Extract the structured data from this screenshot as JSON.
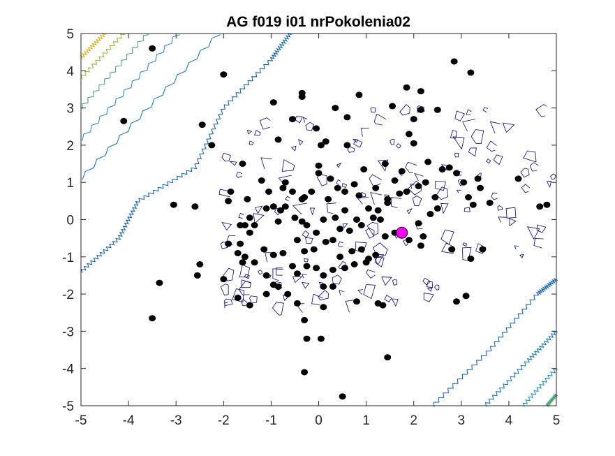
{
  "chart_data": {
    "type": "scatter",
    "title": "AG f019 i01 nrPokolenia02",
    "xlabel": "",
    "ylabel": "",
    "xlim": [
      -5,
      5
    ],
    "ylim": [
      -5,
      5
    ],
    "xticks": [
      -5,
      -4,
      -3,
      -2,
      -1,
      0,
      1,
      2,
      3,
      4,
      5
    ],
    "yticks": [
      -5,
      -4,
      -3,
      -2,
      -1,
      0,
      1,
      2,
      3,
      4,
      5
    ],
    "grid": false,
    "background_contours": {
      "note_colors": [
        "#e0b000",
        "#8fb020",
        "#20a060",
        "#0090c0",
        "#0060b0",
        "#000080"
      ],
      "levels_upper_left": [
        {
          "color": "#d8a800",
          "points": [
            [
              -5,
              4.35
            ],
            [
              -4.5,
              5
            ]
          ]
        },
        {
          "color": "#9ab030",
          "points": [
            [
              -5,
              3.8
            ],
            [
              -4.1,
              5
            ]
          ]
        },
        {
          "color": "#40a070",
          "points": [
            [
              -5,
              3.0
            ],
            [
              -3.6,
              5
            ]
          ]
        },
        {
          "color": "#1088c0",
          "points": [
            [
              -5,
              2.15
            ],
            [
              -2.95,
              5
            ]
          ]
        },
        {
          "color": "#0070c0",
          "points": [
            [
              -5,
              1.1
            ],
            [
              -2.1,
              5
            ]
          ]
        },
        {
          "color": "#0058b0",
          "points": [
            [
              -5,
              -1.4
            ],
            [
              -4.2,
              -0.5
            ],
            [
              -3.8,
              0.5
            ],
            [
              -2.6,
              1.4
            ],
            [
              -2.0,
              3.0
            ],
            [
              -1.0,
              4.3
            ],
            [
              -0.6,
              5
            ]
          ]
        }
      ],
      "levels_lower_right": [
        {
          "color": "#0058b0",
          "points": [
            [
              2.4,
              -5
            ],
            [
              3.6,
              -3.5
            ],
            [
              4.6,
              -2.0
            ],
            [
              5,
              -1.6
            ]
          ]
        },
        {
          "color": "#0070c0",
          "points": [
            [
              3.5,
              -5
            ],
            [
              4.4,
              -3.8
            ],
            [
              5,
              -3.0
            ]
          ]
        },
        {
          "color": "#1088c0",
          "points": [
            [
              4.3,
              -5
            ],
            [
              5,
              -4.0
            ]
          ]
        },
        {
          "color": "#40a070",
          "points": [
            [
              4.8,
              -5
            ],
            [
              5,
              -4.7
            ]
          ]
        }
      ]
    },
    "series": [
      {
        "marker": "filled-circle",
        "color": "#000000",
        "points": [
          [
            -3.5,
            4.6
          ],
          [
            -2.0,
            3.9
          ],
          [
            -4.1,
            2.65
          ],
          [
            -2.45,
            2.55
          ],
          [
            -2.25,
            2.0
          ],
          [
            -0.95,
            3.15
          ],
          [
            -0.35,
            3.4
          ],
          [
            -0.35,
            3.3
          ],
          [
            -0.55,
            2.7
          ],
          [
            -0.85,
            2.15
          ],
          [
            -0.05,
            2.45
          ],
          [
            0.15,
            2.1
          ],
          [
            0.6,
            2.75
          ],
          [
            0.35,
            3.0
          ],
          [
            0.85,
            3.35
          ],
          [
            1.55,
            3.05
          ],
          [
            1.85,
            3.55
          ],
          [
            2.15,
            3.45
          ],
          [
            2.15,
            2.95
          ],
          [
            2.5,
            2.95
          ],
          [
            2.85,
            4.25
          ],
          [
            3.2,
            3.95
          ],
          [
            2.0,
            2.7
          ],
          [
            1.9,
            2.3
          ],
          [
            2.0,
            2.05
          ],
          [
            0.6,
            2.0
          ],
          [
            0.05,
            2.0
          ],
          [
            -1.6,
            1.5
          ],
          [
            -1.2,
            1.05
          ],
          [
            -0.7,
            1.0
          ],
          [
            -1.85,
            0.75
          ],
          [
            -1.9,
            0.5
          ],
          [
            -3.05,
            0.4
          ],
          [
            -2.6,
            0.35
          ],
          [
            -1.5,
            0.55
          ],
          [
            -1.1,
            0.3
          ],
          [
            -0.75,
            0.85
          ],
          [
            -0.55,
            0.75
          ],
          [
            -0.3,
            0.6
          ],
          [
            -0.15,
            0.75
          ],
          [
            0.0,
            1.45
          ],
          [
            0.0,
            1.25
          ],
          [
            0.2,
            0.55
          ],
          [
            0.4,
            0.85
          ],
          [
            0.55,
            0.75
          ],
          [
            0.75,
            0.95
          ],
          [
            0.85,
            0.65
          ],
          [
            1.2,
            0.85
          ],
          [
            1.45,
            0.55
          ],
          [
            1.25,
            0.25
          ],
          [
            1.6,
            1.05
          ],
          [
            1.7,
            0.7
          ],
          [
            1.85,
            0.75
          ],
          [
            2.1,
            0.9
          ],
          [
            2.25,
            1.0
          ],
          [
            2.45,
            0.6
          ],
          [
            2.6,
            1.35
          ],
          [
            2.75,
            1.4
          ],
          [
            2.9,
            1.25
          ],
          [
            3.05,
            1.0
          ],
          [
            3.35,
            1.1
          ],
          [
            3.4,
            0.85
          ],
          [
            3.15,
            0.6
          ],
          [
            3.25,
            0.4
          ],
          [
            3.6,
            0.45
          ],
          [
            4.2,
            1.1
          ],
          [
            4.65,
            0.35
          ],
          [
            4.8,
            0.4
          ],
          [
            1.4,
            1.5
          ],
          [
            1.75,
            1.3
          ],
          [
            -1.65,
            -0.15
          ],
          [
            -1.55,
            -0.15
          ],
          [
            -1.45,
            0.05
          ],
          [
            -1.35,
            -0.15
          ],
          [
            -1.45,
            -0.35
          ],
          [
            -0.95,
            0.35
          ],
          [
            -0.8,
            0.25
          ],
          [
            -0.7,
            0.35
          ],
          [
            -0.85,
            -0.05
          ],
          [
            -0.5,
            0.05
          ],
          [
            -0.35,
            -0.05
          ],
          [
            -0.25,
            -0.15
          ],
          [
            -0.05,
            -0.35
          ],
          [
            0.1,
            0.0
          ],
          [
            0.35,
            0.05
          ],
          [
            0.45,
            -0.25
          ],
          [
            0.55,
            0.25
          ],
          [
            0.65,
            -0.3
          ],
          [
            0.8,
            0.0
          ],
          [
            0.9,
            -0.15
          ],
          [
            1.05,
            0.3
          ],
          [
            1.15,
            0.05
          ],
          [
            1.3,
            0.0
          ],
          [
            1.45,
            0.45
          ],
          [
            2.1,
            -0.1
          ],
          [
            2.2,
            -0.45
          ],
          [
            2.35,
            0.15
          ],
          [
            2.5,
            0.3
          ],
          [
            1.6,
            -0.35
          ],
          [
            1.9,
            -0.55
          ],
          [
            -1.9,
            -0.65
          ],
          [
            -1.65,
            -0.65
          ],
          [
            -1.7,
            -0.9
          ],
          [
            -1.55,
            -1.0
          ],
          [
            -1.15,
            -0.8
          ],
          [
            -0.95,
            -0.95
          ],
          [
            -0.75,
            -0.9
          ],
          [
            -0.45,
            -0.55
          ],
          [
            -0.3,
            -0.85
          ],
          [
            -0.1,
            -0.8
          ],
          [
            0.15,
            -0.6
          ],
          [
            0.3,
            -0.55
          ],
          [
            0.45,
            -1.0
          ],
          [
            0.7,
            -0.85
          ],
          [
            0.9,
            -0.8
          ],
          [
            1.0,
            -1.15
          ],
          [
            1.2,
            -0.95
          ],
          [
            1.4,
            -0.45
          ],
          [
            2.15,
            -0.7
          ],
          [
            2.8,
            -0.8
          ],
          [
            -1.6,
            -1.15
          ],
          [
            -1.35,
            -1.15
          ],
          [
            -1.1,
            -1.5
          ],
          [
            -0.95,
            -1.75
          ],
          [
            -0.55,
            -1.25
          ],
          [
            -0.45,
            -1.45
          ],
          [
            -0.25,
            -1.25
          ],
          [
            -0.05,
            -1.3
          ],
          [
            0.1,
            -1.5
          ],
          [
            0.3,
            -1.35
          ],
          [
            0.55,
            -1.3
          ],
          [
            0.75,
            -1.2
          ],
          [
            1.05,
            -1.05
          ],
          [
            3.2,
            -1.05
          ],
          [
            3.45,
            -0.8
          ],
          [
            -2.5,
            -1.2
          ],
          [
            -2.55,
            -1.5
          ],
          [
            -2.0,
            -1.6
          ],
          [
            -3.35,
            -1.7
          ],
          [
            -1.7,
            -2.1
          ],
          [
            -1.45,
            -2.3
          ],
          [
            -1.1,
            -2.0
          ],
          [
            -0.85,
            -1.8
          ],
          [
            -0.65,
            -2.0
          ],
          [
            -0.45,
            -2.25
          ],
          [
            0.1,
            -1.8
          ],
          [
            0.3,
            -1.8
          ],
          [
            0.1,
            -2.35
          ],
          [
            0.8,
            -2.2
          ],
          [
            1.25,
            -2.25
          ],
          [
            1.35,
            -2.3
          ],
          [
            2.9,
            -2.2
          ],
          [
            3.1,
            -2.05
          ],
          [
            -3.5,
            -2.65
          ],
          [
            -0.3,
            -2.7
          ],
          [
            -0.25,
            -3.2
          ],
          [
            0.05,
            -3.2
          ],
          [
            1.45,
            -3.7
          ],
          [
            -0.3,
            -4.1
          ],
          [
            0.5,
            -4.75
          ],
          [
            -0.35,
            0.55
          ],
          [
            -1.05,
            0.75
          ],
          [
            0.25,
            1.1
          ],
          [
            0.95,
            1.35
          ],
          [
            2.3,
            1.55
          ]
        ]
      },
      {
        "name": "",
        "marker": "filled-circle-large",
        "color": "#ff00ff",
        "points": [
          [
            1.75,
            -0.35
          ]
        ]
      }
    ]
  }
}
